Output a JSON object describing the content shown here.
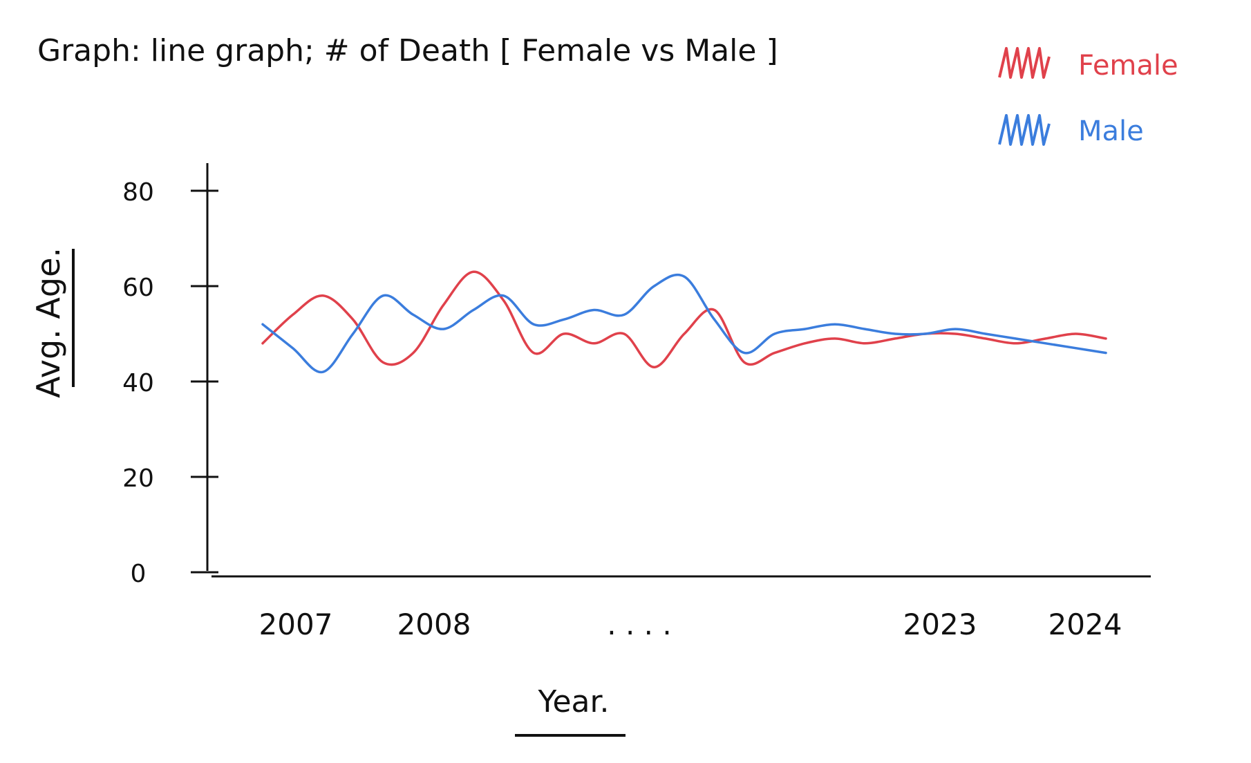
{
  "chart_data": {
    "type": "line",
    "title": "Graph: line graph; # of Death [ Female vs Male ]",
    "xlabel": "Year.",
    "ylabel": "Avg. Age.",
    "x_ticks": [
      "2007",
      "2008",
      ". . . .",
      "2023",
      "2024"
    ],
    "y_ticks": [
      0,
      20,
      40,
      60,
      80
    ],
    "ylim": [
      0,
      80
    ],
    "grid": false,
    "legend": "top-right",
    "x": [
      0,
      0.5,
      1,
      1.5,
      2,
      2.5,
      3,
      3.5,
      4,
      4.5,
      5,
      5.5,
      6,
      6.5,
      7,
      7.5,
      8,
      8.5,
      9,
      9.5,
      10,
      10.5,
      11,
      11.5,
      12,
      12.5,
      13,
      13.5,
      14
    ],
    "series": [
      {
        "name": "Female",
        "color": "#e0414b",
        "values": [
          48,
          54,
          58,
          53,
          44,
          46,
          56,
          63,
          57,
          46,
          50,
          48,
          50,
          43,
          50,
          55,
          44,
          46,
          48,
          49,
          48,
          49,
          50,
          50,
          49,
          48,
          49,
          50,
          49
        ]
      },
      {
        "name": "Male",
        "color": "#3b7ddd",
        "values": [
          52,
          47,
          42,
          50,
          58,
          54,
          51,
          55,
          58,
          52,
          53,
          55,
          54,
          60,
          62,
          53,
          46,
          50,
          51,
          52,
          51,
          50,
          50,
          51,
          50,
          49,
          48,
          47,
          46
        ]
      }
    ]
  }
}
